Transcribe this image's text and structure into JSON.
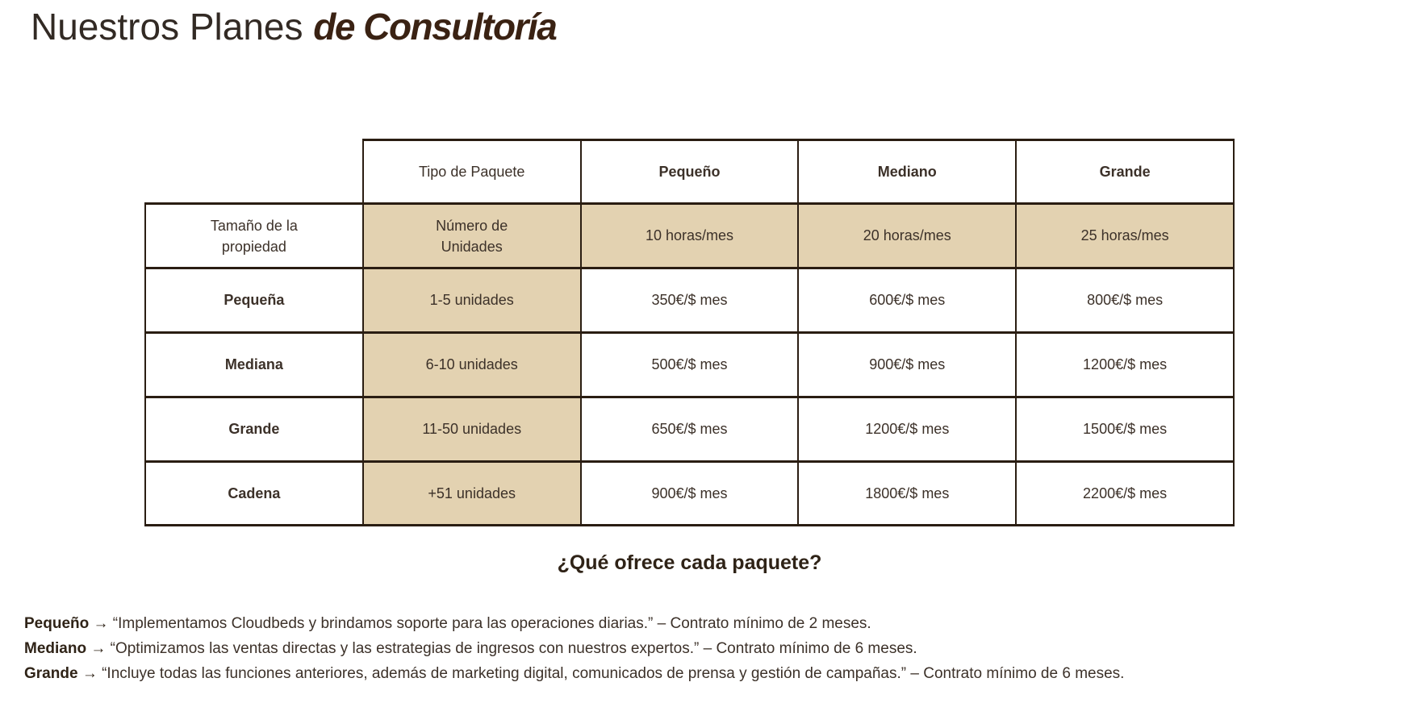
{
  "page": {
    "title_regular": "Nuestros Planes",
    "title_accent": "de Consultoría"
  },
  "table": {
    "columns": [
      "Tipo de Paquete",
      "Pequeño",
      "Mediano",
      "Grande"
    ],
    "rows": [
      {
        "label": "Tamaño de la propiedad",
        "package_type": "Número de Unidades",
        "pequeno": "10 horas/mes",
        "mediano": "20 horas/mes",
        "grande": "25 horas/mes"
      },
      {
        "label": "Pequeña",
        "package_type": "1-5 unidades",
        "pequeno": "350€/$ mes",
        "mediano": "600€/$ mes",
        "grande": "800€/$ mes"
      },
      {
        "label": "Mediana",
        "package_type": "6-10 unidades",
        "pequeno": "500€/$ mes",
        "mediano": "900€/$ mes",
        "grande": "1200€/$ mes"
      },
      {
        "label": "Grande",
        "package_type": "11-50 unidades",
        "pequeno": "650€/$ mes",
        "mediano": "1200€/$ mes",
        "grande": "1500€/$ mes"
      },
      {
        "label": "Cadena",
        "package_type": "+51 unidades",
        "pequeno": "900€/$ mes",
        "mediano": "1800€/$ mes",
        "grande": "2200€/$ mes"
      }
    ]
  },
  "section_heading": "¿Qué ofrece cada paquete?",
  "descriptions": [
    {
      "name": "Pequeño",
      "arrow": "→",
      "text": "“Implementamos Cloudbeds y brindamos soporte para las operaciones diarias.” – Contrato mínimo de 2 meses."
    },
    {
      "name": "Mediano",
      "arrow": "→",
      "text": "“Optimizamos las ventas directas y las estrategias de ingresos con nuestros expertos.” – Contrato mínimo de 6 meses."
    },
    {
      "name": "Grande",
      "arrow": "→",
      "text": "“Incluye todas las funciones anteriores, además de marketing digital, comunicados de prensa y gestión de campañas.” – Contrato mínimo de 6 meses."
    }
  ],
  "colors": {
    "accent_fill": "#e3d2b1",
    "border": "#2a1d12",
    "text": "#3c3129",
    "title": "#322a24",
    "title_accent": "#3a2213",
    "heading": "#2f2317"
  }
}
